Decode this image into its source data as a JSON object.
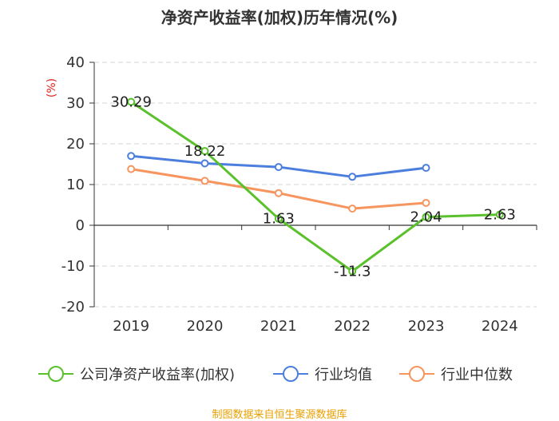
{
  "chart_data": {
    "type": "line",
    "title": "净资产收益率(加权)历年情况(%)",
    "ylabel": "(%)",
    "xlabel": "",
    "ylim": [
      -20,
      40
    ],
    "yticks": [
      -20,
      -10,
      0,
      10,
      20,
      30,
      40
    ],
    "categories": [
      "2019",
      "2020",
      "2021",
      "2022",
      "2023",
      "2024"
    ],
    "grid": true,
    "legend_position": "bottom",
    "series": [
      {
        "name": "公司净资产收益率(加权)",
        "color": "#5ac12c",
        "values": [
          30.29,
          18.22,
          1.63,
          -11.3,
          2.04,
          2.63
        ],
        "labels": [
          "30.29",
          "18.22",
          "1.63",
          "-11.3",
          "2.04",
          "2.63"
        ]
      },
      {
        "name": "行业均值",
        "color": "#4c7fdd",
        "values": [
          17.0,
          15.2,
          14.3,
          11.9,
          14.1,
          null
        ]
      },
      {
        "name": "行业中位数",
        "color": "#f7955e",
        "values": [
          13.8,
          10.9,
          7.9,
          4.1,
          5.5,
          null
        ]
      }
    ]
  },
  "source": "制图数据来自恒生聚源数据库"
}
